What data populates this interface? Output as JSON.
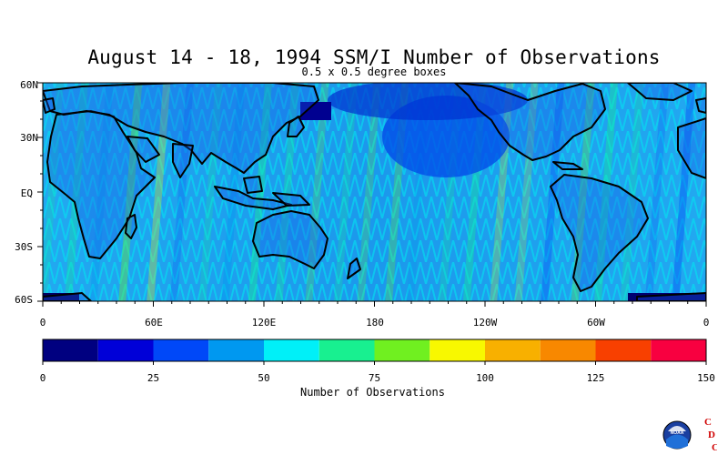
{
  "header": {
    "title": "August 14 - 18, 1994 SSM/I Number of Observations",
    "subtitle": "0.5 x 0.5 degree boxes"
  },
  "map": {
    "lat_labels": [
      "60N",
      "30N",
      "EQ",
      "30S",
      "60S"
    ],
    "lon_labels": [
      "0",
      "60E",
      "120E",
      "180",
      "120W",
      "60W",
      "0"
    ]
  },
  "chart_data": {
    "type": "heatmap",
    "title": "August 14 - 18, 1994 SSM/I Number of Observations",
    "subtitle": "0.5 x 0.5 degree boxes",
    "grid_resolution_deg": 0.5,
    "lat_range": [
      -60,
      60
    ],
    "lon_range": [
      0,
      360
    ],
    "colorbar": {
      "label": "Number of Observations",
      "min": 0,
      "max": 150,
      "tick_values": [
        0,
        25,
        50,
        75,
        100,
        125,
        150
      ],
      "bins": [
        {
          "from": 0,
          "to": 12.5,
          "color": "#000080"
        },
        {
          "from": 12.5,
          "to": 25,
          "color": "#0000d8"
        },
        {
          "from": 25,
          "to": 37.5,
          "color": "#0048f8"
        },
        {
          "from": 37.5,
          "to": 50,
          "color": "#0098f0"
        },
        {
          "from": 50,
          "to": 62.5,
          "color": "#00f0f8"
        },
        {
          "from": 62.5,
          "to": 75,
          "color": "#18f090"
        },
        {
          "from": 75,
          "to": 87.5,
          "color": "#70f020"
        },
        {
          "from": 87.5,
          "to": 100,
          "color": "#f8f800"
        },
        {
          "from": 100,
          "to": 112.5,
          "color": "#f8b000"
        },
        {
          "from": 112.5,
          "to": 125,
          "color": "#f88800"
        },
        {
          "from": 125,
          "to": 137.5,
          "color": "#f84000"
        },
        {
          "from": 137.5,
          "to": 150,
          "color": "#f80040"
        }
      ]
    }
  },
  "logo": {
    "name": "noaa-cdc-logo",
    "text": "NOAA",
    "letters": [
      "C",
      "D",
      "C"
    ],
    "color": "#d00000"
  }
}
